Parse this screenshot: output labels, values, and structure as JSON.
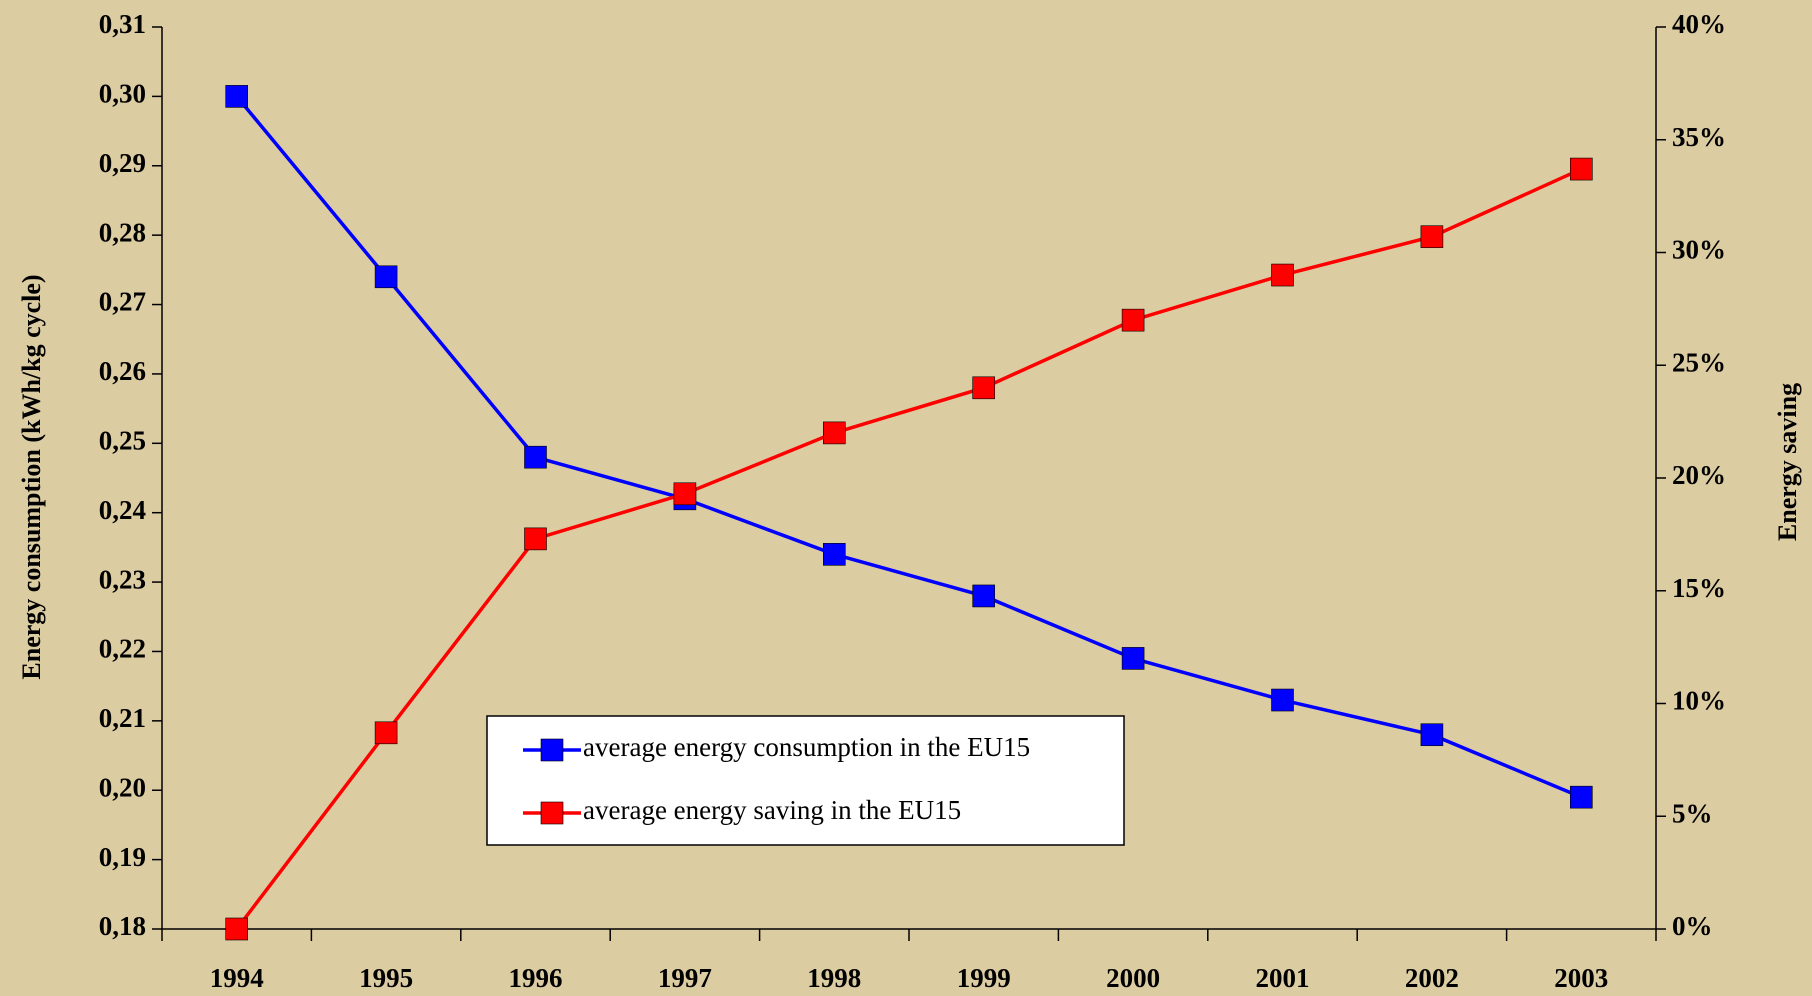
{
  "chart_data": {
    "type": "line",
    "ylabel": "Energy consumption (kWh/kg cycle)",
    "y2label": "Energy saving",
    "categories": [
      "1994",
      "1995",
      "1996",
      "1997",
      "1998",
      "1999",
      "2000",
      "2001",
      "2002",
      "2003"
    ],
    "series": [
      {
        "name": "average energy consumption in the EU15",
        "color": "#0000ff",
        "axis": "y",
        "values": [
          0.3,
          0.274,
          0.248,
          0.242,
          0.234,
          0.228,
          0.219,
          0.213,
          0.208,
          0.199
        ]
      },
      {
        "name": "average energy saving in the EU15",
        "color": "#ff0000",
        "axis": "y2",
        "values": [
          0,
          8.7,
          17.3,
          19.3,
          22.0,
          24.0,
          27.0,
          29.0,
          30.7,
          33.7
        ]
      }
    ],
    "ylim": [
      0.18,
      0.31
    ],
    "yticks": [
      {
        "value": 0.18,
        "label": "0,18"
      },
      {
        "value": 0.19,
        "label": "0,19"
      },
      {
        "value": 0.2,
        "label": "0,20"
      },
      {
        "value": 0.21,
        "label": "0,21"
      },
      {
        "value": 0.22,
        "label": "0,22"
      },
      {
        "value": 0.23,
        "label": "0,23"
      },
      {
        "value": 0.24,
        "label": "0,24"
      },
      {
        "value": 0.25,
        "label": "0,25"
      },
      {
        "value": 0.26,
        "label": "0,26"
      },
      {
        "value": 0.27,
        "label": "0,27"
      },
      {
        "value": 0.28,
        "label": "0,28"
      },
      {
        "value": 0.29,
        "label": "0,29"
      },
      {
        "value": 0.3,
        "label": "0,30"
      },
      {
        "value": 0.31,
        "label": "0,31"
      }
    ],
    "y2lim": [
      0,
      40
    ],
    "y2ticks": [
      {
        "value": 0,
        "label": "0%"
      },
      {
        "value": 5,
        "label": "5%"
      },
      {
        "value": 10,
        "label": "10%"
      },
      {
        "value": 15,
        "label": "15%"
      },
      {
        "value": 20,
        "label": "20%"
      },
      {
        "value": 25,
        "label": "25%"
      },
      {
        "value": 30,
        "label": "30%"
      },
      {
        "value": 35,
        "label": "35%"
      },
      {
        "value": 40,
        "label": "40%"
      }
    ]
  }
}
